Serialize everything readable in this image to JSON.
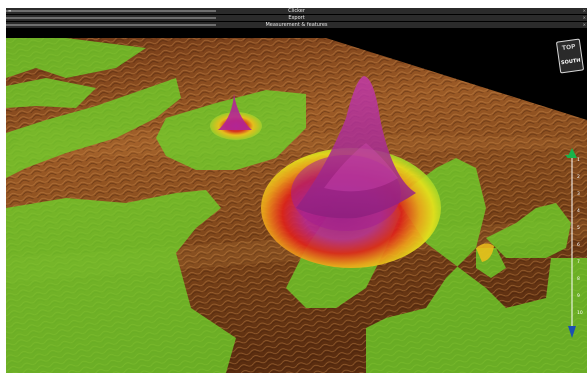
{
  "bars": [
    {
      "label": "Clicker",
      "left_icon": "≡",
      "right_glyph": "×"
    },
    {
      "label": "Export",
      "right_glyph": "×"
    },
    {
      "label": "Measurement & features",
      "right_glyph": "×"
    }
  ],
  "compass": {
    "top_label": "TOP",
    "bottom_label": "SOUTH"
  },
  "depth_scale": {
    "ticks": [
      "1",
      "2",
      "3",
      "4",
      "5",
      "6",
      "7",
      "8",
      "9",
      "10"
    ],
    "arrow_color": "#19b34a"
  },
  "colors": {
    "seabed": "#8a4a1e",
    "overlay_green": "#6bd12a",
    "peak_magenta": "#b0249a",
    "peak_red": "#e0221a",
    "peak_yellow": "#f4d21a"
  }
}
